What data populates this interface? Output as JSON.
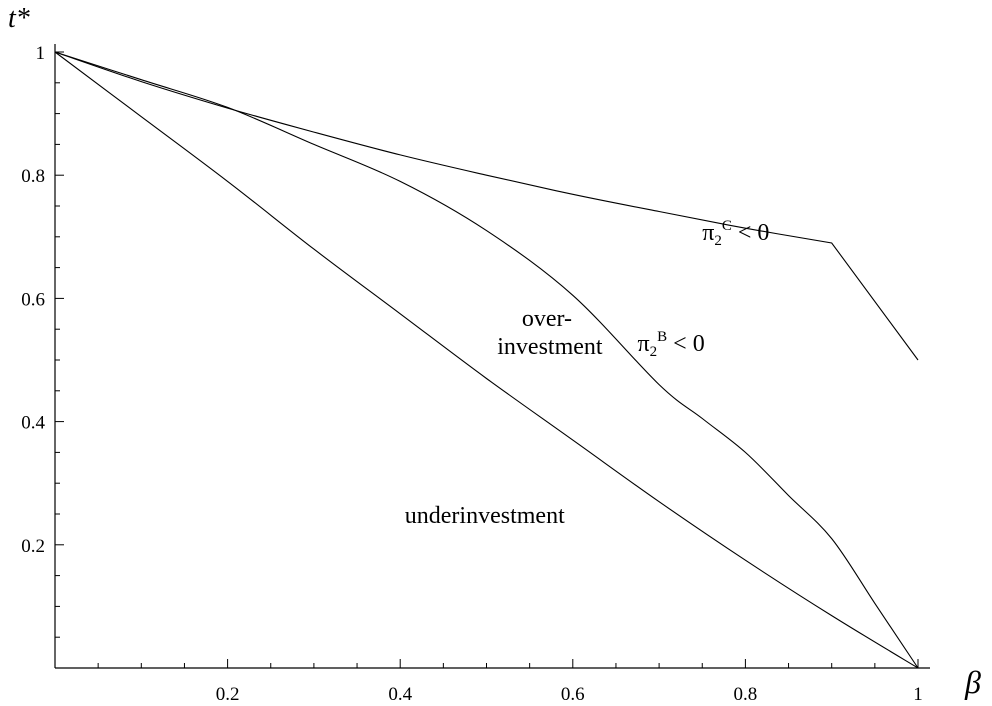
{
  "chart_data": {
    "type": "line",
    "xlabel": "β",
    "ylabel": "t*",
    "xlim": [
      0,
      1
    ],
    "ylim": [
      0,
      1
    ],
    "x_ticks": [
      0.2,
      0.4,
      0.6,
      0.8,
      1
    ],
    "x_tick_labels": [
      "0.2",
      "0.4",
      "0.6",
      "0.8",
      "1"
    ],
    "y_ticks": [
      0.2,
      0.4,
      0.6,
      0.8,
      1
    ],
    "y_tick_labels": [
      "0.2",
      "0.4",
      "0.6",
      "0.8",
      "1"
    ],
    "grid": false,
    "series": [
      {
        "id": "upper",
        "x": [
          0,
          0.1,
          0.2,
          0.3,
          0.4,
          0.5,
          0.6,
          0.7,
          0.8,
          0.9,
          1.0
        ],
        "y": [
          1.0,
          0.952,
          0.909,
          0.87,
          0.833,
          0.8,
          0.769,
          0.741,
          0.714,
          0.69,
          0.5
        ]
      },
      {
        "id": "middle",
        "x": [
          0,
          0.1,
          0.2,
          0.3,
          0.4,
          0.5,
          0.6,
          0.7,
          0.75,
          0.8,
          0.85,
          0.9,
          0.95,
          1.0
        ],
        "y": [
          1.0,
          0.955,
          0.91,
          0.85,
          0.79,
          0.71,
          0.605,
          0.46,
          0.405,
          0.35,
          0.28,
          0.21,
          0.105,
          0.0
        ]
      },
      {
        "id": "lower",
        "x": [
          0,
          0.1,
          0.2,
          0.3,
          0.4,
          0.5,
          0.6,
          0.7,
          0.8,
          0.9,
          1.0
        ],
        "y": [
          1.0,
          0.895,
          0.79,
          0.68,
          0.575,
          0.47,
          0.37,
          0.27,
          0.175,
          0.085,
          0.0
        ]
      }
    ],
    "annotations": [
      {
        "id": "pi-c",
        "base": "π",
        "sub": "2",
        "sup": "C",
        "tail": " < 0",
        "x": 0.75,
        "y": 0.695
      },
      {
        "id": "pi-b",
        "base": "π",
        "sub": "2",
        "sup": "B",
        "tail": " < 0",
        "x": 0.675,
        "y": 0.515
      },
      {
        "id": "over-1",
        "text": "over-",
        "x": 0.57,
        "y": 0.555,
        "anchor": "middle"
      },
      {
        "id": "over-2",
        "text": "investment",
        "x": 0.5735,
        "y": 0.51,
        "anchor": "middle"
      },
      {
        "id": "under",
        "text": "underinvestment",
        "x": 0.498,
        "y": 0.235,
        "anchor": "middle"
      }
    ]
  }
}
